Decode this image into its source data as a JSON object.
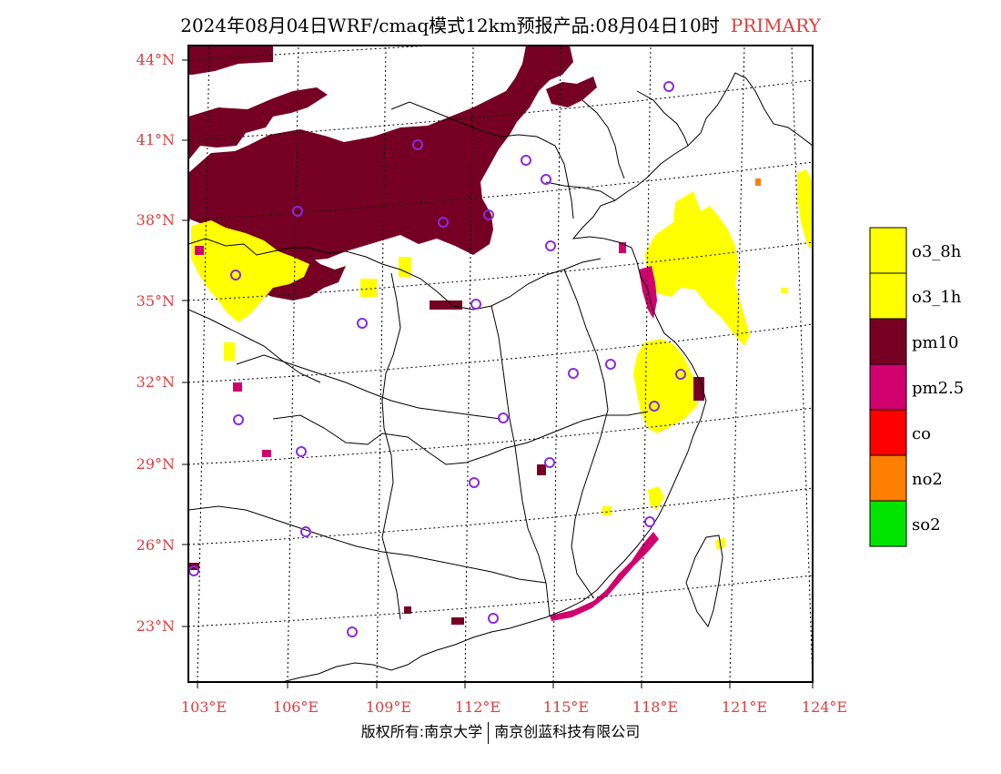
{
  "title": {
    "main": "2024年08月04日WRF/cmaq模式12km预报产品:08月04日10时",
    "tag": "PRIMARY"
  },
  "colors": {
    "o3_8h": "#ffff00",
    "o3_1h": "#ffff00",
    "pm10": "#760024",
    "pm2_5": "#d0006f",
    "co": "#ff0000",
    "no2": "#ff7f00",
    "so2": "#00e400",
    "axis_label": "#e23b3b",
    "station": "#8a2be2"
  },
  "axes": {
    "lon_labels": [
      "103°E",
      "106°E",
      "109°E",
      "112°E",
      "115°E",
      "118°E",
      "121°E",
      "124°E"
    ],
    "lat_labels": [
      "44°N",
      "41°N",
      "38°N",
      "35°N",
      "32°N",
      "29°N",
      "26°N",
      "23°N"
    ]
  },
  "legend": [
    {
      "label": "o3_8h",
      "color": "#ffff00"
    },
    {
      "label": "o3_1h",
      "color": "#ffff00"
    },
    {
      "label": "pm10",
      "color": "#760024"
    },
    {
      "label": "pm2.5",
      "color": "#d0006f"
    },
    {
      "label": "co",
      "color": "#ff0000"
    },
    {
      "label": "no2",
      "color": "#ff7f00"
    },
    {
      "label": "so2",
      "color": "#00e400"
    }
  ],
  "footer": {
    "left": "版权所有:南京大学",
    "right": "南京创蓝科技有限公司"
  }
}
